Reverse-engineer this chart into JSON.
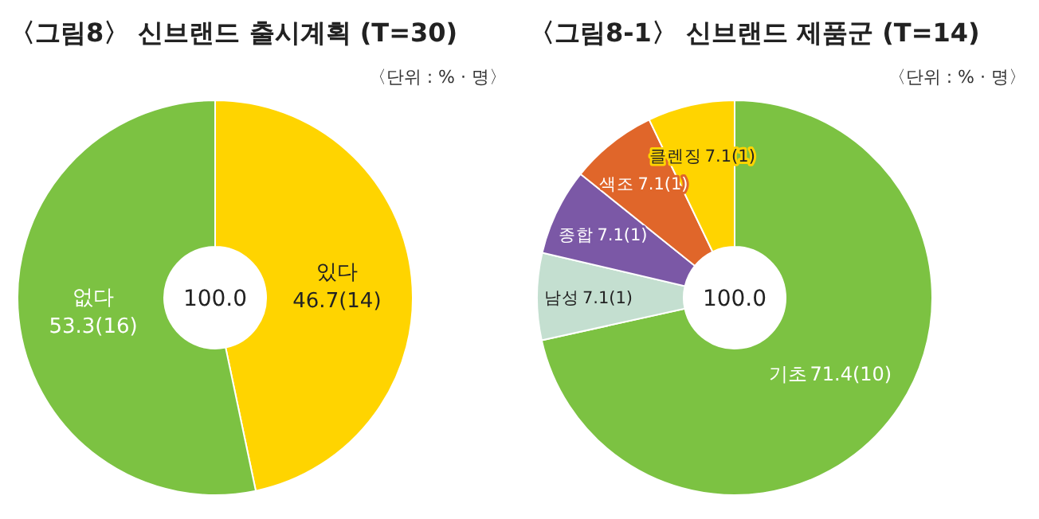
{
  "chart_data": [
    {
      "type": "donut",
      "title": "〈그림8〉 신브랜드 출시계획 (T=30)",
      "subtitle": "〈단위 : % · 명〉",
      "categories": [
        "있다",
        "없다"
      ],
      "values": [
        46.7,
        53.3
      ],
      "value_labels": [
        "46.7(14)",
        "53.3(16)"
      ],
      "colors": [
        "#ffd400",
        "#7cc242"
      ],
      "annotations": [
        "100.0"
      ]
    },
    {
      "type": "donut",
      "title": "〈그림8-1〉 신브랜드 제품군 (T=14)",
      "subtitle": "〈단위 : % · 명〉",
      "categories": [
        "기초",
        "남성",
        "종합",
        "색조",
        "클렌징"
      ],
      "values": [
        71.4,
        7.1,
        7.1,
        7.1,
        7.1
      ],
      "value_labels": [
        "71.4(10)",
        "7.1(1)",
        "7.1(1)",
        "7.1(1)",
        "7.1(1)"
      ],
      "colors": [
        "#7cc242",
        "#c4dfd0",
        "#7b58a6",
        "#e0662a",
        "#ffd400"
      ],
      "annotations": [
        "100.0"
      ]
    }
  ]
}
